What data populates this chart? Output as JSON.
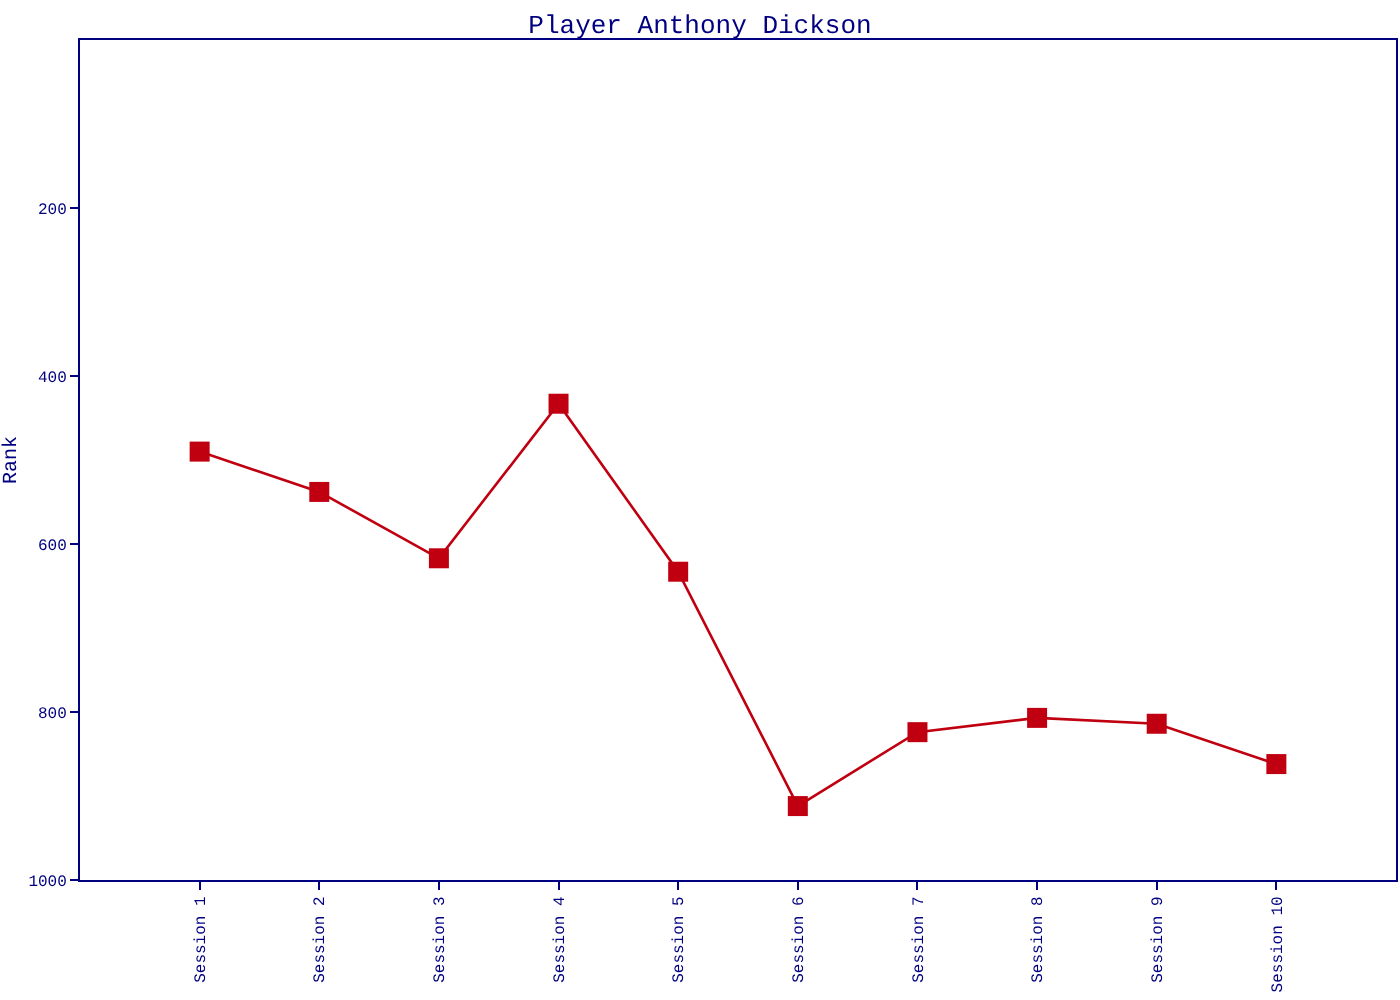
{
  "chart_data": {
    "type": "line",
    "title": "Player Anthony Dickson",
    "ylabel": "Rank",
    "categories": [
      "Session 1",
      "Session 2",
      "Session 3",
      "Session 4",
      "Session 5",
      "Session 6",
      "Session 7",
      "Session 8",
      "Session 9",
      "Session 10"
    ],
    "series": [
      {
        "color": "#c00010",
        "values": [
          490,
          538,
          617,
          433,
          633,
          912,
          824,
          807,
          814,
          862
        ]
      }
    ],
    "ylim": [
      1000,
      0
    ],
    "yticks": [
      200,
      400,
      600,
      800,
      1000
    ],
    "grid": false,
    "marker": "square",
    "line_style": "solid"
  }
}
